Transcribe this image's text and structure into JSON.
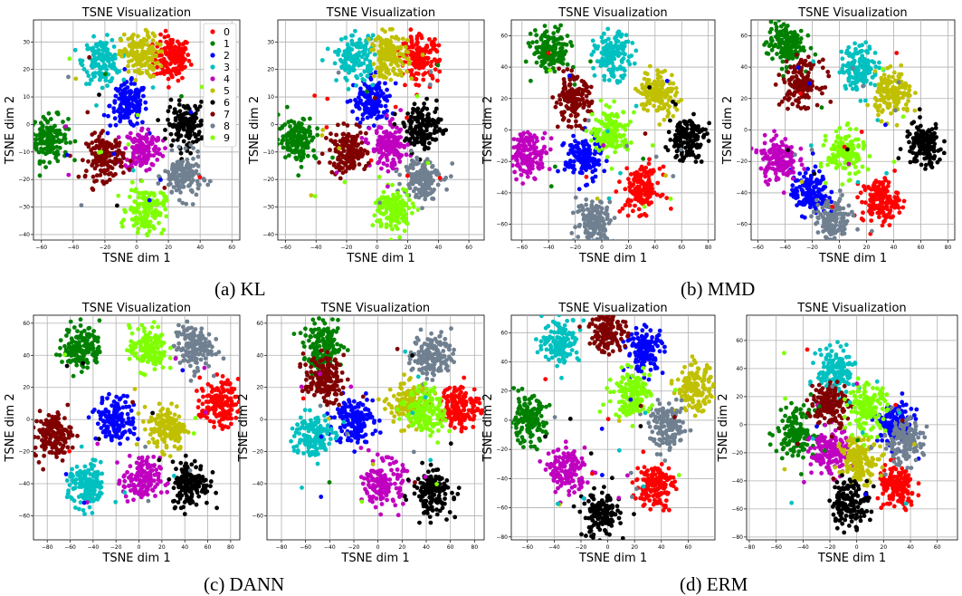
{
  "colors": [
    "#ff0000",
    "#008000",
    "#0000ff",
    "#00c0c0",
    "#c000c0",
    "#c0c000",
    "#000000",
    "#800000",
    "#708090",
    "#7fff00"
  ],
  "captions": [
    "(a) KL",
    "(b) MMD",
    "(c) DANN",
    "(d) ERM"
  ],
  "chart_data": [
    {
      "type": "scatter",
      "title": "TSNE Visualization",
      "xlabel": "TSNE dim 1",
      "ylabel": "TSNE dim 2",
      "xlim": [
        -65,
        65
      ],
      "ylim": [
        -42,
        38
      ],
      "grid": true,
      "xticks": [
        -60,
        -40,
        -20,
        0,
        20,
        40,
        60
      ],
      "yticks": [
        -40,
        -30,
        -20,
        -10,
        0,
        10,
        20,
        30
      ],
      "legend": {
        "position": "top-right",
        "labels": [
          "0",
          "1",
          "2",
          "3",
          "4",
          "5",
          "6",
          "7",
          "8",
          "9"
        ]
      },
      "clusters": [
        {
          "class": 0,
          "center": [
            22,
            24
          ]
        },
        {
          "class": 1,
          "center": [
            -55,
            -5
          ]
        },
        {
          "class": 2,
          "center": [
            -5,
            7
          ]
        },
        {
          "class": 3,
          "center": [
            -22,
            23
          ]
        },
        {
          "class": 4,
          "center": [
            4,
            -9
          ]
        },
        {
          "class": 5,
          "center": [
            2,
            25
          ]
        },
        {
          "class": 6,
          "center": [
            31,
            0
          ]
        },
        {
          "class": 7,
          "center": [
            -20,
            -12
          ]
        },
        {
          "class": 8,
          "center": [
            29,
            -19
          ]
        },
        {
          "class": 9,
          "center": [
            6,
            -31
          ]
        }
      ]
    },
    {
      "type": "scatter",
      "title": "TSNE Visualization",
      "xlabel": "TSNE dim 1",
      "ylabel": "TSNE dim 2",
      "xlim": [
        -65,
        70
      ],
      "ylim": [
        -42,
        38
      ],
      "grid": true,
      "xticks": [
        -60,
        -40,
        -20,
        0,
        20,
        40,
        60
      ],
      "yticks": [
        -40,
        -30,
        -20,
        -10,
        0,
        10,
        20,
        30
      ],
      "clusters": [
        {
          "class": 0,
          "center": [
            28,
            24
          ]
        },
        {
          "class": 1,
          "center": [
            -52,
            -5
          ]
        },
        {
          "class": 2,
          "center": [
            -3,
            8
          ]
        },
        {
          "class": 3,
          "center": [
            -14,
            24
          ]
        },
        {
          "class": 4,
          "center": [
            8,
            -8
          ]
        },
        {
          "class": 5,
          "center": [
            8,
            25
          ]
        },
        {
          "class": 6,
          "center": [
            30,
            -1
          ]
        },
        {
          "class": 7,
          "center": [
            -19,
            -10
          ]
        },
        {
          "class": 8,
          "center": [
            29,
            -19
          ]
        },
        {
          "class": 9,
          "center": [
            11,
            -31
          ]
        }
      ]
    },
    {
      "type": "scatter",
      "title": "TSNE Visualization",
      "xlabel": "TSNE dim 1",
      "ylabel": "TSNE dim 2",
      "xlim": [
        -68,
        85
      ],
      "ylim": [
        -70,
        70
      ],
      "grid": true,
      "xticks": [
        -60,
        -40,
        -20,
        0,
        20,
        40,
        60,
        80
      ],
      "yticks": [
        -60,
        -40,
        -20,
        0,
        20,
        40,
        60
      ],
      "clusters": [
        {
          "class": 0,
          "center": [
            30,
            -38
          ]
        },
        {
          "class": 1,
          "center": [
            -38,
            50
          ]
        },
        {
          "class": 2,
          "center": [
            -14,
            -18
          ]
        },
        {
          "class": 3,
          "center": [
            8,
            47
          ]
        },
        {
          "class": 4,
          "center": [
            -55,
            -15
          ]
        },
        {
          "class": 5,
          "center": [
            42,
            24
          ]
        },
        {
          "class": 6,
          "center": [
            64,
            -5
          ]
        },
        {
          "class": 7,
          "center": [
            -22,
            19
          ]
        },
        {
          "class": 8,
          "center": [
            -5,
            -58
          ]
        },
        {
          "class": 9,
          "center": [
            7,
            -1
          ]
        }
      ]
    },
    {
      "type": "scatter",
      "title": "TSNE Visualization",
      "xlabel": "TSNE dim 1",
      "ylabel": "TSNE dim 2",
      "xlim": [
        -65,
        85
      ],
      "ylim": [
        -70,
        70
      ],
      "grid": true,
      "xticks": [
        -60,
        -40,
        -20,
        0,
        20,
        40,
        60,
        80
      ],
      "yticks": [
        -60,
        -40,
        -20,
        0,
        20,
        40,
        60
      ],
      "clusters": [
        {
          "class": 0,
          "center": [
            30,
            -45
          ]
        },
        {
          "class": 1,
          "center": [
            -40,
            55
          ]
        },
        {
          "class": 2,
          "center": [
            -22,
            -40
          ]
        },
        {
          "class": 3,
          "center": [
            15,
            40
          ]
        },
        {
          "class": 4,
          "center": [
            -45,
            -18
          ]
        },
        {
          "class": 5,
          "center": [
            40,
            22
          ]
        },
        {
          "class": 6,
          "center": [
            62,
            -10
          ]
        },
        {
          "class": 7,
          "center": [
            -28,
            30
          ]
        },
        {
          "class": 8,
          "center": [
            -5,
            -58
          ]
        },
        {
          "class": 9,
          "center": [
            5,
            -15
          ]
        }
      ]
    },
    {
      "type": "scatter",
      "title": "TSNE Visualization",
      "xlabel": "TSNE dim 1",
      "ylabel": "TSNE dim 2",
      "xlim": [
        -92,
        88
      ],
      "ylim": [
        -75,
        65
      ],
      "grid": true,
      "xticks": [
        -80,
        -60,
        -40,
        -20,
        0,
        20,
        40,
        60,
        80
      ],
      "yticks": [
        -60,
        -40,
        -20,
        0,
        20,
        40,
        60
      ],
      "clusters": [
        {
          "class": 0,
          "center": [
            70,
            10
          ]
        },
        {
          "class": 1,
          "center": [
            -50,
            45
          ]
        },
        {
          "class": 2,
          "center": [
            -20,
            0
          ]
        },
        {
          "class": 3,
          "center": [
            -45,
            -42
          ]
        },
        {
          "class": 4,
          "center": [
            2,
            -38
          ]
        },
        {
          "class": 5,
          "center": [
            25,
            -5
          ]
        },
        {
          "class": 6,
          "center": [
            45,
            -40
          ]
        },
        {
          "class": 7,
          "center": [
            -75,
            -10
          ]
        },
        {
          "class": 8,
          "center": [
            47,
            45
          ]
        },
        {
          "class": 9,
          "center": [
            8,
            44
          ]
        }
      ]
    },
    {
      "type": "scatter",
      "title": "TSNE Visualization",
      "xlabel": "TSNE dim 1",
      "ylabel": "TSNE dim 2",
      "xlim": [
        -92,
        88
      ],
      "ylim": [
        -75,
        65
      ],
      "grid": true,
      "xticks": [
        -80,
        -60,
        -40,
        -20,
        0,
        20,
        40,
        60,
        80
      ],
      "yticks": [
        -60,
        -40,
        -20,
        0,
        20,
        40,
        60
      ],
      "clusters": [
        {
          "class": 0,
          "center": [
            68,
            8
          ]
        },
        {
          "class": 1,
          "center": [
            -45,
            45
          ]
        },
        {
          "class": 2,
          "center": [
            -20,
            0
          ]
        },
        {
          "class": 3,
          "center": [
            -55,
            -10
          ]
        },
        {
          "class": 4,
          "center": [
            5,
            -40
          ]
        },
        {
          "class": 5,
          "center": [
            25,
            10
          ]
        },
        {
          "class": 6,
          "center": [
            45,
            -45
          ]
        },
        {
          "class": 7,
          "center": [
            -45,
            25
          ]
        },
        {
          "class": 8,
          "center": [
            45,
            40
          ]
        },
        {
          "class": 9,
          "center": [
            40,
            5
          ]
        }
      ]
    },
    {
      "type": "scatter",
      "title": "TSNE Visualization",
      "xlabel": "TSNE dim 1",
      "ylabel": "TSNE dim 2",
      "xlim": [
        -72,
        80
      ],
      "ylim": [
        -82,
        72
      ],
      "grid": true,
      "xticks": [
        -60,
        -40,
        -20,
        0,
        20,
        40,
        60
      ],
      "yticks": [
        -80,
        -60,
        -40,
        -20,
        0,
        20,
        40,
        60
      ],
      "clusters": [
        {
          "class": 0,
          "center": [
            35,
            -45
          ]
        },
        {
          "class": 1,
          "center": [
            -60,
            0
          ]
        },
        {
          "class": 2,
          "center": [
            28,
            48
          ]
        },
        {
          "class": 3,
          "center": [
            -35,
            55
          ]
        },
        {
          "class": 4,
          "center": [
            -30,
            -35
          ]
        },
        {
          "class": 5,
          "center": [
            65,
            22
          ]
        },
        {
          "class": 6,
          "center": [
            -5,
            -65
          ]
        },
        {
          "class": 7,
          "center": [
            0,
            62
          ]
        },
        {
          "class": 8,
          "center": [
            45,
            -5
          ]
        },
        {
          "class": 9,
          "center": [
            18,
            18
          ]
        }
      ]
    },
    {
      "type": "scatter",
      "title": "TSNE Visualization",
      "xlabel": "TSNE dim 1",
      "ylabel": "TSNE dim 2",
      "xlim": [
        -82,
        75
      ],
      "ylim": [
        -82,
        78
      ],
      "grid": true,
      "xticks": [
        -80,
        -60,
        -40,
        -20,
        0,
        20,
        40,
        60
      ],
      "yticks": [
        -80,
        -60,
        -40,
        -20,
        0,
        20,
        40,
        60
      ],
      "clusters": [
        {
          "class": 0,
          "center": [
            30,
            -45
          ]
        },
        {
          "class": 1,
          "center": [
            -45,
            -5
          ]
        },
        {
          "class": 2,
          "center": [
            28,
            0
          ]
        },
        {
          "class": 3,
          "center": [
            -15,
            38
          ]
        },
        {
          "class": 4,
          "center": [
            -20,
            -20
          ]
        },
        {
          "class": 5,
          "center": [
            2,
            -25
          ]
        },
        {
          "class": 6,
          "center": [
            -5,
            -55
          ]
        },
        {
          "class": 7,
          "center": [
            -20,
            15
          ]
        },
        {
          "class": 8,
          "center": [
            35,
            -12
          ]
        },
        {
          "class": 9,
          "center": [
            8,
            12
          ]
        }
      ]
    }
  ]
}
